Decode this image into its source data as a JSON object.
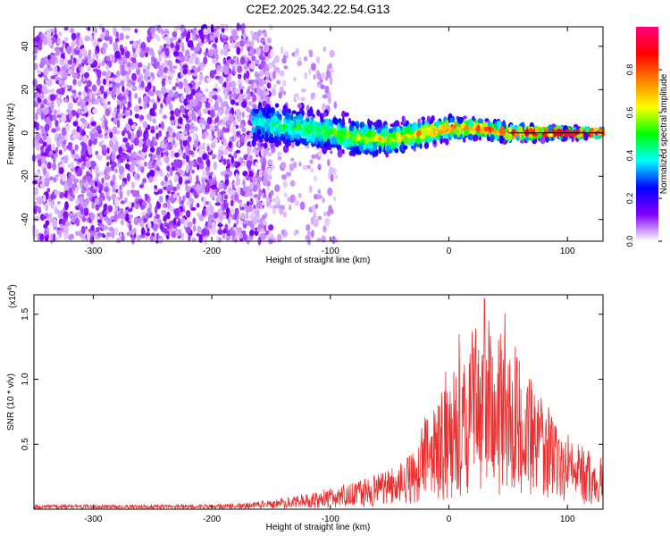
{
  "title": "C2E2.2025.342.22.54.G13",
  "chart_data": [
    {
      "type": "heatmap",
      "xlabel": "Height of straight line (km)",
      "ylabel": "Frequency (Hz)",
      "xlim": [
        -350,
        130
      ],
      "ylim": [
        -50,
        49
      ],
      "xticks": [
        -300,
        -200,
        -100,
        0,
        100
      ],
      "yticks": [
        -40,
        -20,
        0,
        20,
        40
      ],
      "noise_edge_x": -165,
      "signal_track": [
        {
          "x": -165,
          "y": 5
        },
        {
          "x": -140,
          "y": 3
        },
        {
          "x": -110,
          "y": 1
        },
        {
          "x": -80,
          "y": -2
        },
        {
          "x": -50,
          "y": -3
        },
        {
          "x": -30,
          "y": -1
        },
        {
          "x": 0,
          "y": 2
        },
        {
          "x": 30,
          "y": 2
        },
        {
          "x": 50,
          "y": 0
        },
        {
          "x": 80,
          "y": 0
        },
        {
          "x": 130,
          "y": 0
        }
      ],
      "colorbar": {
        "label": "Normalized spectral amplitude",
        "ticks": [
          0.0,
          0.2,
          0.4,
          0.6,
          0.8
        ],
        "range": [
          0,
          1
        ],
        "colors": [
          "#ffffff",
          "#8000ff",
          "#0000ff",
          "#00ffff",
          "#00ff00",
          "#ffff00",
          "#ff8000",
          "#ff0000",
          "#ff0080"
        ]
      }
    },
    {
      "type": "line",
      "xlabel": "Height of straight line (km)",
      "ylabel": "SNR (10 * v/v)",
      "y_multiplier_label": "(x10",
      "y_multiplier_exp": "4",
      "y_multiplier_close": ")",
      "xlim": [
        -350,
        130
      ],
      "ylim": [
        0,
        1.65
      ],
      "xticks": [
        -300,
        -200,
        -100,
        0,
        100
      ],
      "yticks": [
        0.5,
        1.0,
        1.5
      ],
      "ytick_labels": [
        "0.5",
        "1.0",
        "1.5"
      ],
      "color": "#e83030",
      "envelope": [
        {
          "x": -350,
          "y": 0.03
        },
        {
          "x": -200,
          "y": 0.03
        },
        {
          "x": -170,
          "y": 0.04
        },
        {
          "x": -140,
          "y": 0.07
        },
        {
          "x": -110,
          "y": 0.11
        },
        {
          "x": -80,
          "y": 0.17
        },
        {
          "x": -50,
          "y": 0.24
        },
        {
          "x": -30,
          "y": 0.35
        },
        {
          "x": -20,
          "y": 0.55
        },
        {
          "x": 0,
          "y": 0.8
        },
        {
          "x": 20,
          "y": 1.0
        },
        {
          "x": 30,
          "y": 1.15
        },
        {
          "x": 45,
          "y": 1.05
        },
        {
          "x": 60,
          "y": 0.92
        },
        {
          "x": 70,
          "y": 0.8
        },
        {
          "x": 85,
          "y": 0.62
        },
        {
          "x": 100,
          "y": 0.48
        },
        {
          "x": 115,
          "y": 0.38
        },
        {
          "x": 130,
          "y": 0.32
        }
      ],
      "peak": {
        "x": 30,
        "y": 1.62
      }
    }
  ]
}
